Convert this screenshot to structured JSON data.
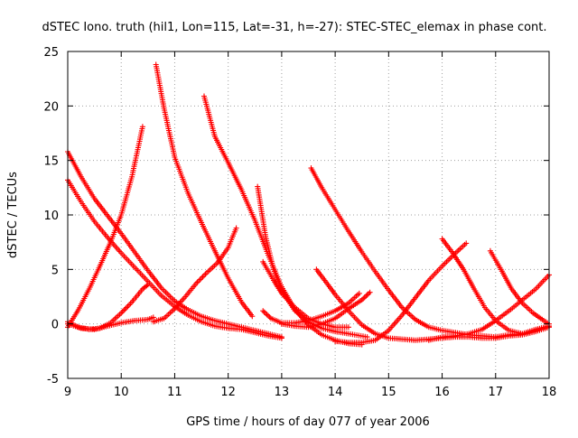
{
  "chart_data": {
    "type": "scatter",
    "title": "dSTEC Iono. truth (hil1, Lon=115, Lat=-31, h=-27): STEC-STEC_elemax in phase cont.",
    "xlabel": "GPS time / hours of day 077 of year 2006",
    "ylabel": "dSTEC  / TECUs",
    "xlim": [
      9,
      18
    ],
    "ylim": [
      -5,
      25
    ],
    "xticks": [
      9,
      10,
      11,
      12,
      13,
      14,
      15,
      16,
      17,
      18
    ],
    "yticks": [
      -5,
      0,
      5,
      10,
      15,
      20,
      25
    ],
    "xtick_labels": [
      "9",
      "10",
      "11",
      "12",
      "13",
      "14",
      "15",
      "16",
      "17",
      "18"
    ],
    "ytick_labels": [
      "-5",
      "0",
      "5",
      "10",
      "15",
      "20",
      "25"
    ],
    "grid": true,
    "marker": "+",
    "color": "#ff0000",
    "series": [
      {
        "points": [
          [
            9.0,
            15.8
          ],
          [
            9.25,
            13.5
          ],
          [
            9.5,
            11.5
          ],
          [
            9.75,
            9.9
          ],
          [
            10.0,
            8.3
          ],
          [
            10.25,
            6.6
          ],
          [
            10.5,
            4.9
          ],
          [
            10.75,
            3.3
          ],
          [
            11.0,
            2.1
          ],
          [
            11.25,
            1.3
          ],
          [
            11.5,
            0.7
          ],
          [
            11.75,
            0.3
          ],
          [
            12.0,
            0.0
          ],
          [
            12.25,
            -0.3
          ],
          [
            12.5,
            -0.6
          ],
          [
            12.75,
            -0.9
          ],
          [
            13.0,
            -1.2
          ]
        ]
      },
      {
        "points": [
          [
            9.0,
            13.2
          ],
          [
            9.25,
            11.2
          ],
          [
            9.5,
            9.4
          ],
          [
            9.75,
            7.9
          ],
          [
            10.0,
            6.5
          ],
          [
            10.25,
            5.2
          ],
          [
            10.5,
            3.9
          ],
          [
            10.75,
            2.6
          ],
          [
            11.0,
            1.6
          ],
          [
            11.25,
            0.8
          ],
          [
            11.5,
            0.2
          ],
          [
            11.75,
            -0.2
          ],
          [
            12.0,
            -0.4
          ],
          [
            12.25,
            -0.5
          ],
          [
            12.5,
            -0.8
          ],
          [
            12.75,
            -1.1
          ],
          [
            13.0,
            -1.3
          ]
        ]
      },
      {
        "points": [
          [
            9.0,
            -0.3
          ],
          [
            9.2,
            1.3
          ],
          [
            9.4,
            3.2
          ],
          [
            9.6,
            5.3
          ],
          [
            9.8,
            7.5
          ],
          [
            10.0,
            10.0
          ],
          [
            10.2,
            13.5
          ],
          [
            10.3,
            15.8
          ],
          [
            10.4,
            18.1
          ]
        ]
      },
      {
        "points": [
          [
            9.0,
            0.2
          ],
          [
            9.2,
            -0.3
          ],
          [
            9.4,
            -0.5
          ],
          [
            9.6,
            -0.4
          ],
          [
            9.8,
            0.1
          ],
          [
            10.0,
            1.0
          ],
          [
            10.2,
            2.0
          ],
          [
            10.4,
            3.2
          ],
          [
            10.5,
            3.6
          ]
        ]
      },
      {
        "points": [
          [
            9.0,
            0.0
          ],
          [
            9.25,
            -0.4
          ],
          [
            9.5,
            -0.5
          ],
          [
            9.75,
            -0.2
          ],
          [
            10.0,
            0.1
          ],
          [
            10.25,
            0.3
          ],
          [
            10.5,
            0.4
          ],
          [
            10.6,
            0.6
          ]
        ]
      },
      {
        "points": [
          [
            10.65,
            23.8
          ],
          [
            10.8,
            19.8
          ],
          [
            11.0,
            15.3
          ],
          [
            11.25,
            12.0
          ],
          [
            11.5,
            9.3
          ],
          [
            11.75,
            6.7
          ],
          [
            12.0,
            4.2
          ],
          [
            12.25,
            2.0
          ],
          [
            12.45,
            0.7
          ]
        ]
      },
      {
        "points": [
          [
            10.6,
            0.2
          ],
          [
            10.8,
            0.5
          ],
          [
            11.0,
            1.4
          ],
          [
            11.2,
            2.5
          ],
          [
            11.4,
            3.7
          ],
          [
            11.6,
            4.7
          ],
          [
            11.8,
            5.6
          ],
          [
            12.0,
            7.0
          ],
          [
            12.15,
            8.8
          ]
        ]
      },
      {
        "points": [
          [
            11.55,
            20.9
          ],
          [
            11.75,
            17.2
          ],
          [
            12.0,
            14.8
          ],
          [
            12.25,
            12.3
          ],
          [
            12.5,
            9.5
          ],
          [
            12.75,
            6.3
          ],
          [
            13.0,
            3.4
          ],
          [
            13.25,
            1.3
          ],
          [
            13.5,
            -0.1
          ],
          [
            13.75,
            -1.0
          ],
          [
            14.0,
            -1.5
          ],
          [
            14.25,
            -1.8
          ],
          [
            14.5,
            -1.9
          ]
        ]
      },
      {
        "points": [
          [
            12.55,
            12.6
          ],
          [
            12.7,
            8.0
          ],
          [
            12.85,
            5.0
          ],
          [
            13.0,
            3.0
          ],
          [
            13.25,
            1.2
          ],
          [
            13.5,
            0.2
          ],
          [
            13.75,
            -0.4
          ],
          [
            14.0,
            -0.7
          ],
          [
            14.25,
            -0.9
          ],
          [
            14.6,
            -1.2
          ]
        ]
      },
      {
        "points": [
          [
            12.65,
            5.7
          ],
          [
            12.85,
            4.0
          ],
          [
            13.0,
            2.8
          ],
          [
            13.25,
            1.5
          ],
          [
            13.5,
            0.5
          ],
          [
            13.75,
            0.0
          ],
          [
            14.0,
            -0.3
          ],
          [
            14.25,
            -0.3
          ]
        ]
      },
      {
        "points": [
          [
            12.65,
            1.2
          ],
          [
            12.8,
            0.5
          ],
          [
            13.0,
            0.1
          ],
          [
            13.25,
            0.1
          ],
          [
            13.5,
            0.3
          ],
          [
            13.75,
            0.7
          ],
          [
            14.0,
            1.2
          ],
          [
            14.25,
            1.9
          ],
          [
            14.45,
            2.8
          ]
        ]
      },
      {
        "points": [
          [
            13.0,
            0.0
          ],
          [
            13.25,
            -0.2
          ],
          [
            13.5,
            -0.3
          ],
          [
            13.75,
            0.0
          ],
          [
            14.0,
            0.5
          ],
          [
            14.25,
            1.4
          ],
          [
            14.5,
            2.2
          ],
          [
            14.65,
            2.9
          ]
        ]
      },
      {
        "points": [
          [
            13.55,
            14.3
          ],
          [
            13.75,
            12.5
          ],
          [
            14.0,
            10.5
          ],
          [
            14.25,
            8.5
          ],
          [
            14.5,
            6.6
          ],
          [
            14.75,
            4.8
          ],
          [
            15.0,
            3.1
          ],
          [
            15.25,
            1.5
          ],
          [
            15.5,
            0.4
          ],
          [
            15.75,
            -0.3
          ],
          [
            16.0,
            -0.6
          ],
          [
            16.25,
            -0.8
          ],
          [
            16.5,
            -1.0
          ],
          [
            16.75,
            -1.1
          ],
          [
            17.0,
            -1.2
          ],
          [
            17.25,
            -1.0
          ],
          [
            17.5,
            -0.9
          ],
          [
            17.75,
            -0.5
          ],
          [
            18.0,
            -0.2
          ]
        ]
      },
      {
        "points": [
          [
            13.65,
            5.0
          ],
          [
            13.85,
            3.7
          ],
          [
            14.0,
            2.7
          ],
          [
            14.25,
            1.2
          ],
          [
            14.5,
            -0.1
          ],
          [
            14.75,
            -0.9
          ],
          [
            15.0,
            -1.3
          ],
          [
            15.25,
            -1.4
          ],
          [
            15.5,
            -1.5
          ],
          [
            15.75,
            -1.4
          ],
          [
            16.0,
            -1.3
          ],
          [
            16.25,
            -1.2
          ],
          [
            16.5,
            -1.2
          ],
          [
            16.75,
            -1.3
          ],
          [
            17.0,
            -1.3
          ],
          [
            17.25,
            -1.1
          ],
          [
            17.5,
            -1.0
          ],
          [
            17.75,
            -0.7
          ],
          [
            18.0,
            -0.3
          ]
        ]
      },
      {
        "points": [
          [
            14.0,
            -1.6
          ],
          [
            14.25,
            -1.7
          ],
          [
            14.5,
            -1.7
          ],
          [
            14.75,
            -1.5
          ],
          [
            15.0,
            -0.6
          ],
          [
            15.25,
            0.8
          ],
          [
            15.5,
            2.4
          ],
          [
            15.75,
            4.0
          ],
          [
            16.0,
            5.3
          ],
          [
            16.25,
            6.5
          ],
          [
            16.45,
            7.4
          ]
        ]
      },
      {
        "points": [
          [
            16.0,
            7.8
          ],
          [
            16.2,
            6.5
          ],
          [
            16.4,
            5.0
          ],
          [
            16.6,
            3.2
          ],
          [
            16.8,
            1.5
          ],
          [
            17.0,
            0.3
          ],
          [
            17.25,
            -0.6
          ],
          [
            17.5,
            -0.9
          ],
          [
            17.75,
            -0.6
          ],
          [
            18.0,
            -0.2
          ]
        ]
      },
      {
        "points": [
          [
            16.9,
            6.7
          ],
          [
            17.1,
            5.0
          ],
          [
            17.3,
            3.2
          ],
          [
            17.5,
            1.9
          ],
          [
            17.7,
            1.0
          ],
          [
            17.9,
            0.3
          ],
          [
            18.0,
            0.0
          ]
        ]
      },
      {
        "points": [
          [
            15.75,
            -1.5
          ],
          [
            16.0,
            -1.2
          ],
          [
            16.25,
            -1.1
          ],
          [
            16.5,
            -0.9
          ],
          [
            16.75,
            -0.5
          ],
          [
            17.0,
            0.3
          ],
          [
            17.25,
            1.2
          ],
          [
            17.5,
            2.2
          ],
          [
            17.75,
            3.2
          ],
          [
            18.0,
            4.5
          ]
        ]
      }
    ]
  }
}
